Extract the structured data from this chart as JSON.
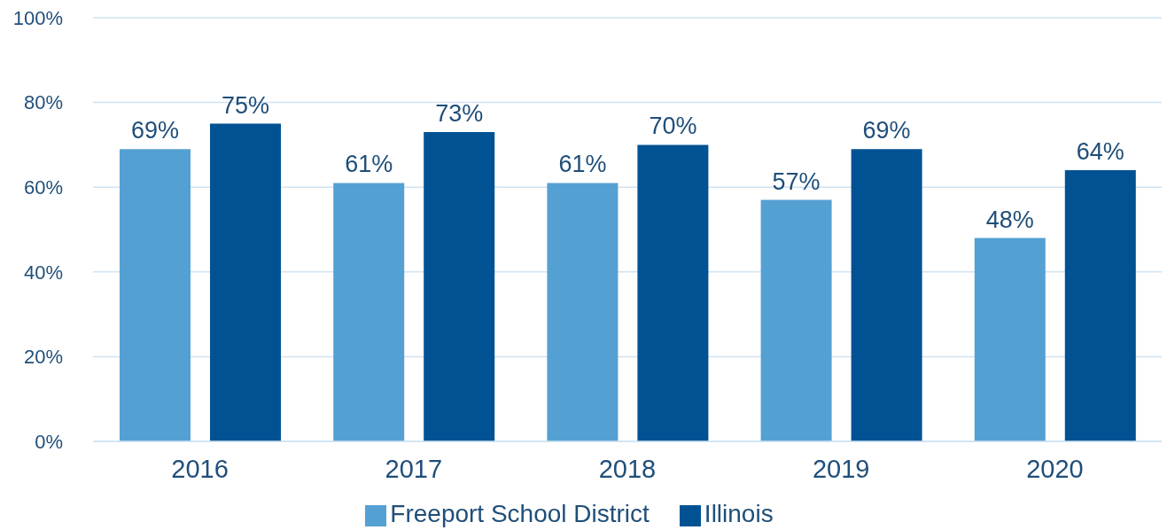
{
  "chart_data": {
    "type": "bar",
    "categories": [
      "2016",
      "2017",
      "2018",
      "2019",
      "2020"
    ],
    "series": [
      {
        "name": "Freeport School District",
        "color": "#55a0d3",
        "values": [
          69,
          61,
          61,
          57,
          48
        ],
        "value_labels": [
          "69%",
          "61%",
          "61%",
          "57%",
          "48%"
        ]
      },
      {
        "name": "Illinois",
        "color": "#005293",
        "values": [
          75,
          73,
          70,
          69,
          64
        ],
        "value_labels": [
          "75%",
          "73%",
          "70%",
          "69%",
          "64%"
        ]
      }
    ],
    "ylim": [
      0,
      100
    ],
    "yticks": [
      {
        "value": 0,
        "label": "0%"
      },
      {
        "value": 20,
        "label": "20%"
      },
      {
        "value": 40,
        "label": "40%"
      },
      {
        "value": 60,
        "label": "60%"
      },
      {
        "value": 80,
        "label": "80%"
      },
      {
        "value": 100,
        "label": "100%"
      }
    ],
    "grid": "y",
    "legend": "bottom"
  }
}
